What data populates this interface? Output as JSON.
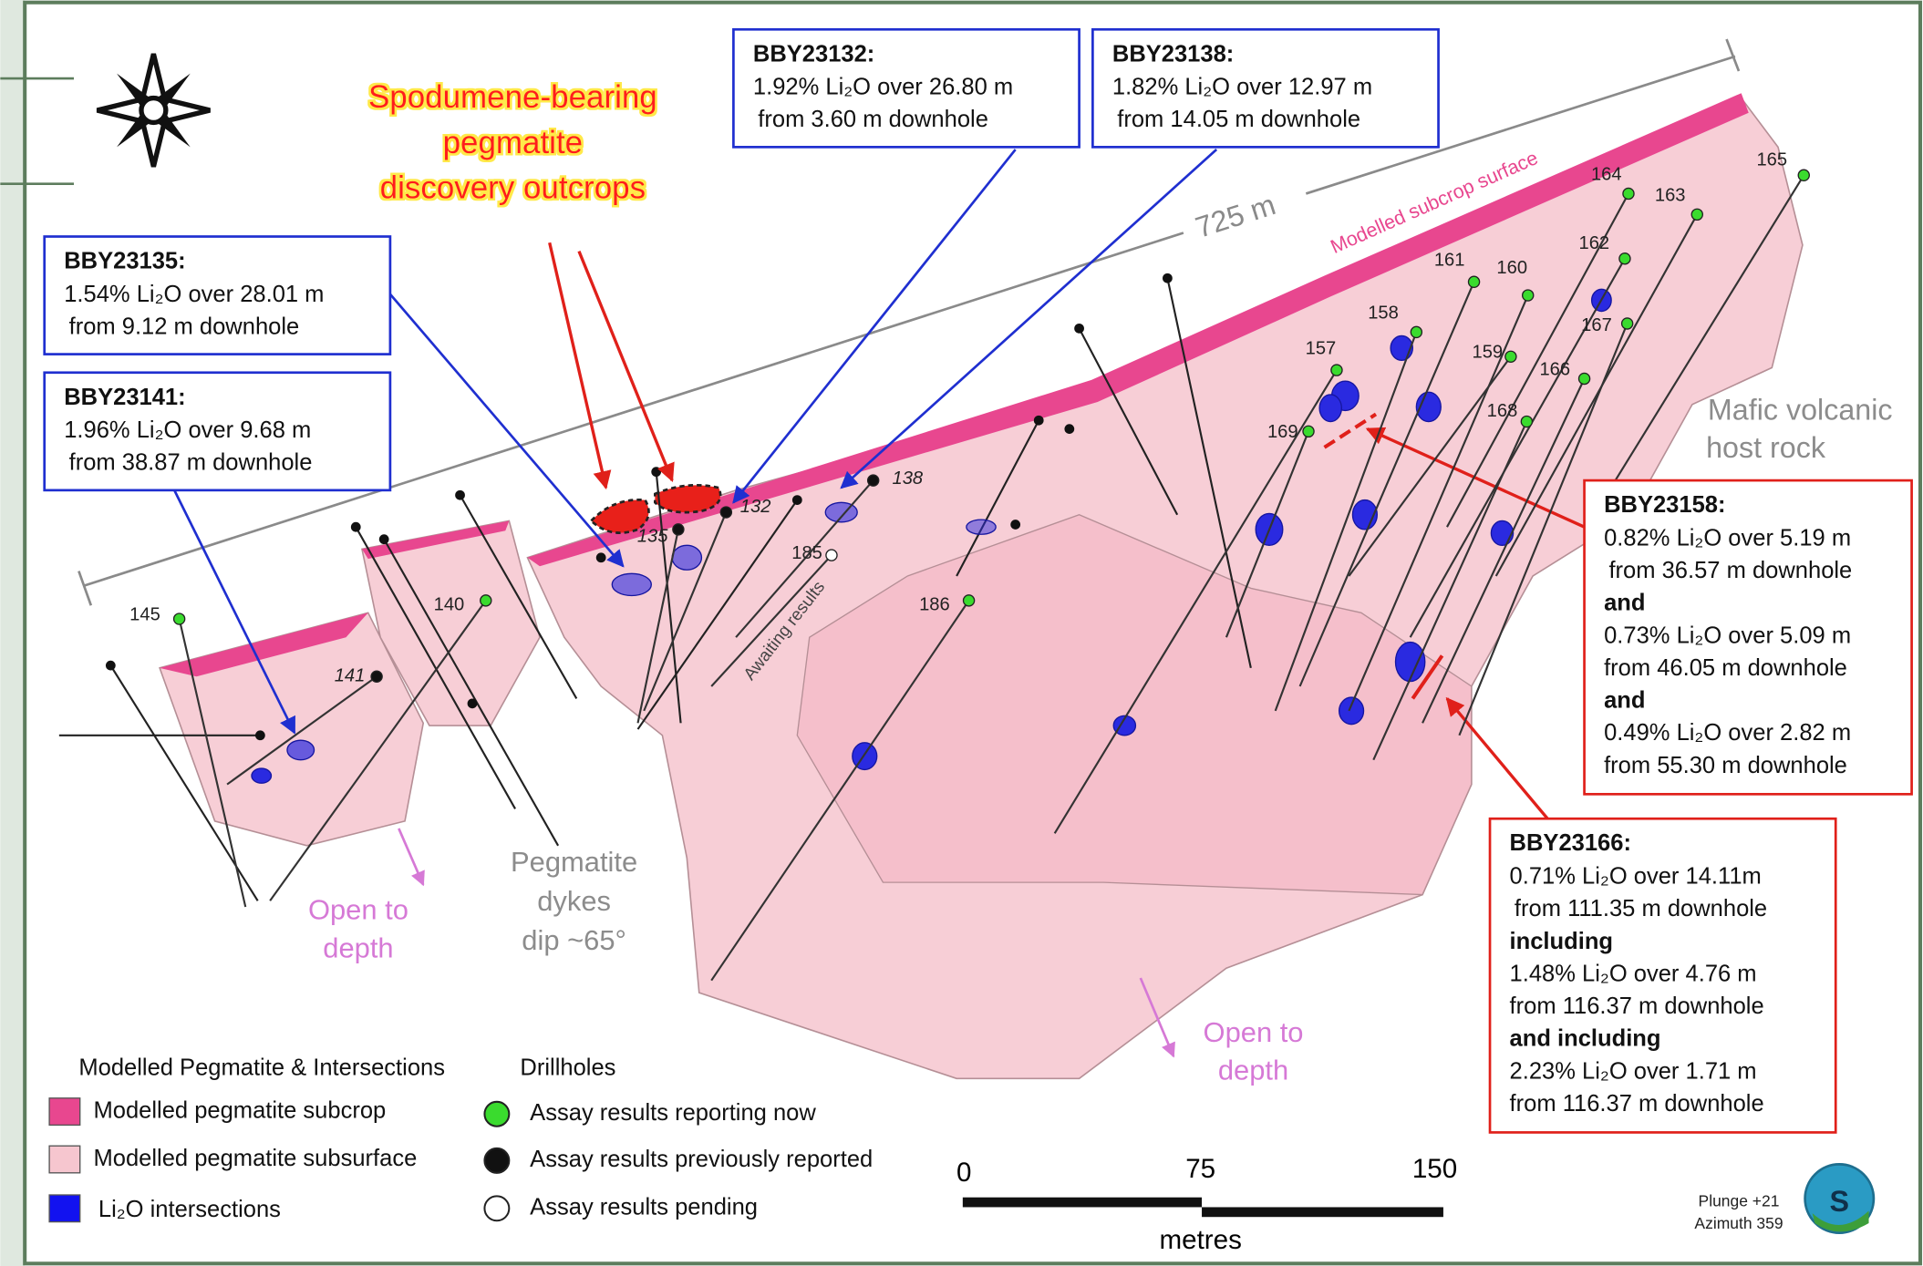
{
  "headline": [
    "Spodumene-bearing",
    "pegmatite",
    "discovery outcrops"
  ],
  "distance_label": "725 m",
  "surface_label": "Modelled subcrop surface",
  "callouts": [
    {
      "header": "BBY23132:",
      "lines": [
        "1.92% Li₂O over 26.80 m",
        "from 3.60 m downhole"
      ]
    },
    {
      "header": "BBY23138:",
      "lines": [
        "1.82% Li₂O over 12.97 m",
        "from 14.05 m downhole"
      ]
    },
    {
      "header": "BBY23135:",
      "lines": [
        "1.54% Li₂O over 28.01 m",
        "from 9.12 m downhole"
      ]
    },
    {
      "header": "BBY23141:",
      "lines": [
        "1.96% Li₂O over 9.68 m",
        "from 38.87 m downhole"
      ]
    },
    {
      "header": "BBY23158:",
      "lines": [
        "0.82% Li₂O over 5.19 m",
        "from 36.57 m downhole",
        "and",
        "0.73% Li₂O over 5.09 m",
        "from 46.05 m downhole",
        "and",
        "0.49% Li₂O over 2.82 m",
        "from 55.30 m downhole"
      ]
    },
    {
      "header": "BBY23166:",
      "lines": [
        "0.71% Li₂O over 14.11m",
        "from 111.35 m downhole",
        "including",
        "1.48% Li₂O over 4.76 m",
        "from 116.37 m downhole",
        "and including",
        "2.23% Li₂O over 1.71 m",
        "from 116.37 m downhole"
      ]
    }
  ],
  "drillholes": [
    {
      "label": "145",
      "status": "now"
    },
    {
      "label": "140",
      "status": "now"
    },
    {
      "label": "141",
      "status": "previous"
    },
    {
      "label": "135",
      "status": "previous"
    },
    {
      "label": "132",
      "status": "previous"
    },
    {
      "label": "138",
      "status": "previous"
    },
    {
      "label": "185",
      "status": "pending"
    },
    {
      "label": "186",
      "status": "now"
    },
    {
      "label": "157",
      "status": "now"
    },
    {
      "label": "158",
      "status": "now"
    },
    {
      "label": "169",
      "status": "now"
    },
    {
      "label": "161",
      "status": "now"
    },
    {
      "label": "160",
      "status": "now"
    },
    {
      "label": "164",
      "status": "now"
    },
    {
      "label": "163",
      "status": "now"
    },
    {
      "label": "162",
      "status": "now"
    },
    {
      "label": "167",
      "status": "now"
    },
    {
      "label": "159",
      "status": "now"
    },
    {
      "label": "166",
      "status": "now"
    },
    {
      "label": "168",
      "status": "now"
    },
    {
      "label": "165",
      "status": "now"
    }
  ],
  "annotations": {
    "awaiting": "Awaiting results",
    "host_rock": [
      "Mafic volcanic",
      "host rock"
    ],
    "dykes": [
      "Pegmatite",
      "dykes",
      "dip ~65°"
    ],
    "open_depth_left": [
      "Open to",
      "depth"
    ],
    "open_depth_right": [
      "Open to",
      "depth"
    ]
  },
  "legend": {
    "pegmatite_title": "Modelled Pegmatite & Intersections",
    "pegmatite_items": [
      "Modelled pegmatite subcrop",
      "Modelled pegmatite subsurface",
      "Li₂O intersections"
    ],
    "drill_title": "Drillholes",
    "drill_items": [
      "Assay results reporting now",
      "Assay results previously reported",
      "Assay results pending"
    ]
  },
  "scale_bar": {
    "ticks": [
      "0",
      "75",
      "150"
    ],
    "unit": "metres"
  },
  "view": [
    "Plunge +21",
    "Azimuth 359"
  ]
}
